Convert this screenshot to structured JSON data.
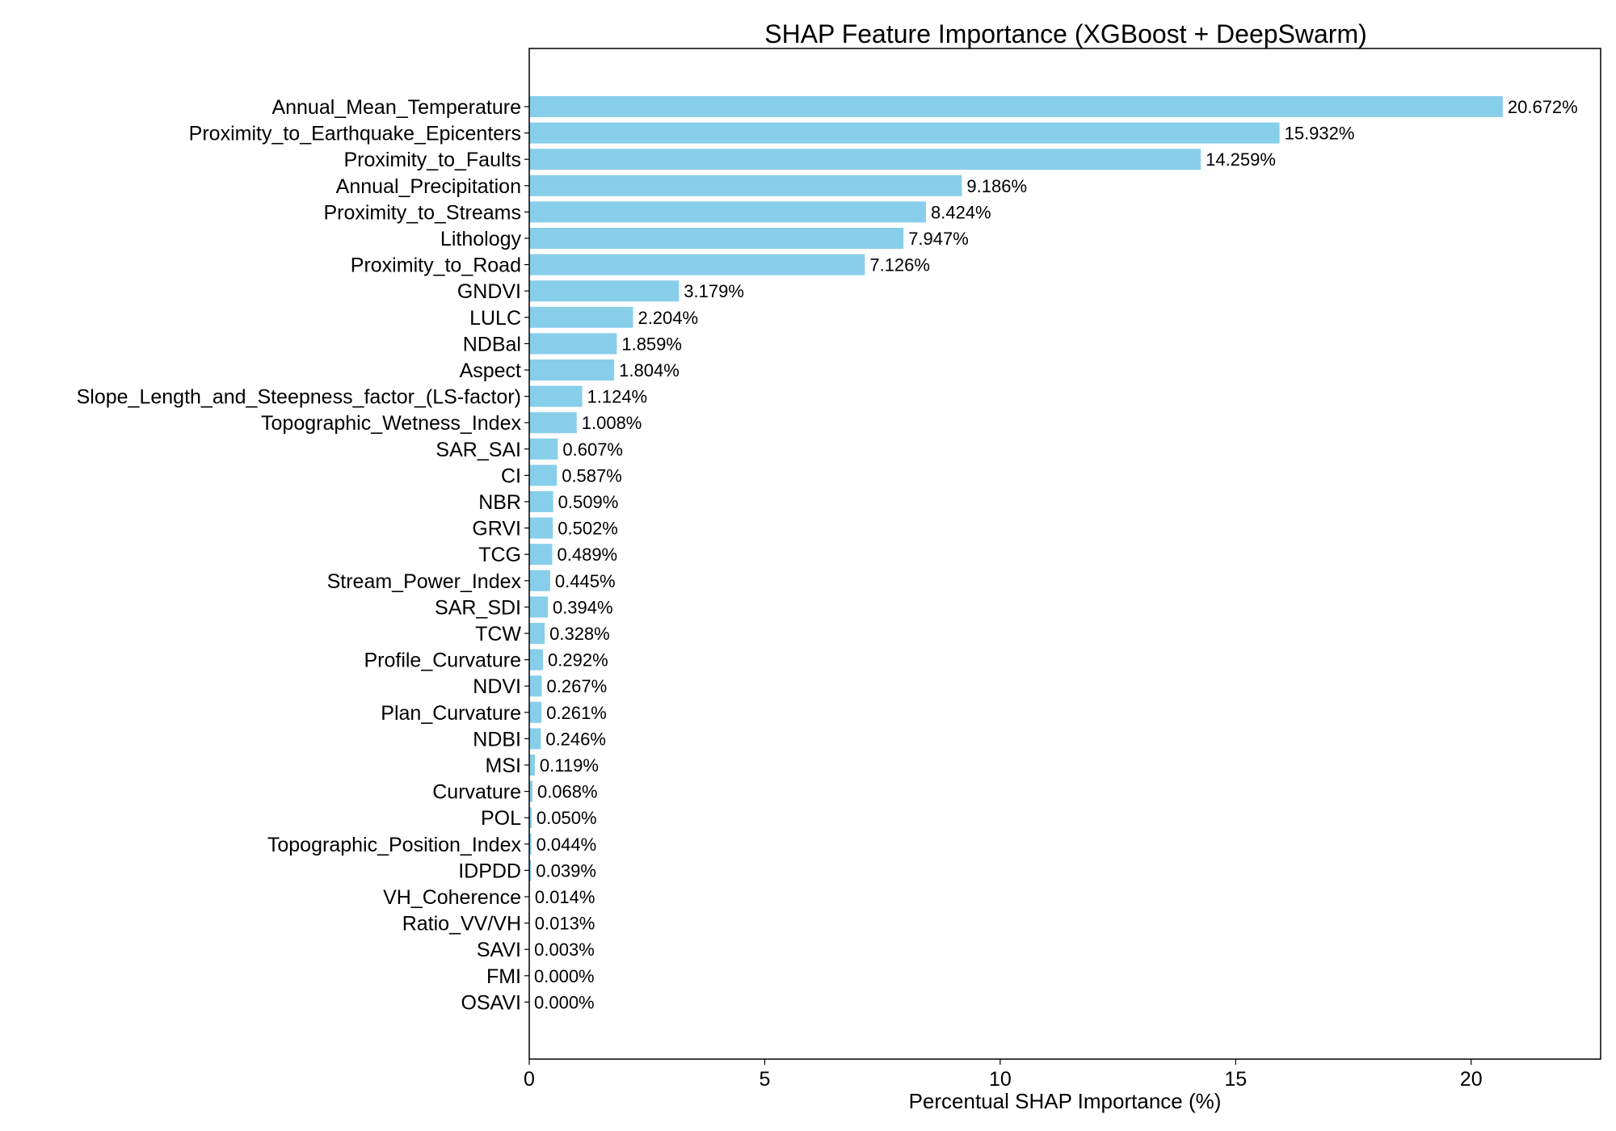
{
  "chart_data": {
    "type": "bar",
    "orientation": "horizontal",
    "title": "SHAP Feature Importance (XGBoost + DeepSwarm)",
    "xlabel": "Percentual SHAP Importance (%)",
    "ylabel": "",
    "xlim": [
      0,
      22.75
    ],
    "xticks": [
      0,
      5,
      10,
      15,
      20
    ],
    "grid": false,
    "bar_color": "#87ceeb",
    "categories": [
      "Annual_Mean_Temperature",
      "Proximity_to_Earthquake_Epicenters",
      "Proximity_to_Faults",
      "Annual_Precipitation",
      "Proximity_to_Streams",
      "Lithology",
      "Proximity_to_Road",
      "GNDVI",
      "LULC",
      "NDBal",
      "Aspect",
      "Slope_Length_and_Steepness_factor_(LS-factor)",
      "Topographic_Wetness_Index",
      "SAR_SAI",
      "CI",
      "NBR",
      "GRVI",
      "TCG",
      "Stream_Power_Index",
      "SAR_SDI",
      "TCW",
      "Profile_Curvature",
      "NDVI",
      "Plan_Curvature",
      "NDBI",
      "MSI",
      "Curvature",
      "POL",
      "Topographic_Position_Index",
      "IDPDD",
      "VH_Coherence",
      "Ratio_VV/VH",
      "SAVI",
      "FMI",
      "OSAVI"
    ],
    "values": [
      20.672,
      15.932,
      14.259,
      9.186,
      8.424,
      7.947,
      7.126,
      3.179,
      2.204,
      1.859,
      1.804,
      1.124,
      1.008,
      0.607,
      0.587,
      0.509,
      0.502,
      0.489,
      0.445,
      0.394,
      0.328,
      0.292,
      0.267,
      0.261,
      0.246,
      0.119,
      0.068,
      0.05,
      0.044,
      0.039,
      0.014,
      0.013,
      0.003,
      0.0,
      0.0
    ],
    "value_labels": [
      "20.672%",
      "15.932%",
      "14.259%",
      "9.186%",
      "8.424%",
      "7.947%",
      "7.126%",
      "3.179%",
      "2.204%",
      "1.859%",
      "1.804%",
      "1.124%",
      "1.008%",
      "0.607%",
      "0.587%",
      "0.509%",
      "0.502%",
      "0.489%",
      "0.445%",
      "0.394%",
      "0.328%",
      "0.292%",
      "0.267%",
      "0.261%",
      "0.246%",
      "0.119%",
      "0.068%",
      "0.050%",
      "0.044%",
      "0.039%",
      "0.014%",
      "0.013%",
      "0.003%",
      "0.000%",
      "0.000%"
    ]
  }
}
